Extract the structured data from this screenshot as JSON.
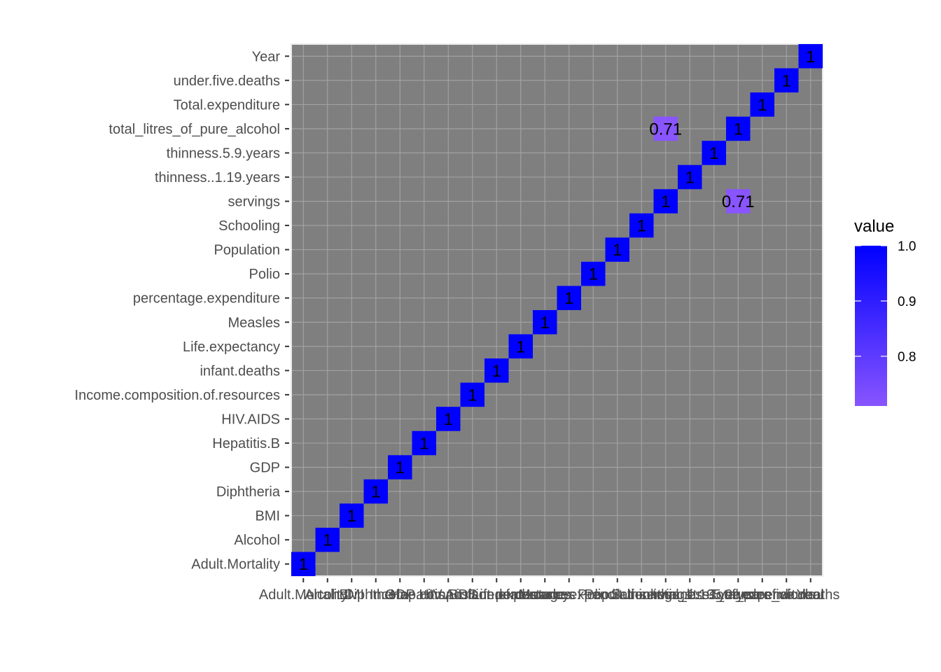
{
  "chart_data": {
    "type": "heatmap",
    "variables": [
      "Adult.Mortality",
      "Alcohol",
      "BMI",
      "Diphtheria",
      "GDP",
      "Hepatitis.B",
      "HIV.AIDS",
      "Income.composition.of.resources",
      "infant.deaths",
      "Life.expectancy",
      "Measles",
      "percentage.expenditure",
      "Polio",
      "Population",
      "Schooling",
      "servings",
      "thinness..1.19.years",
      "thinness.5.9.years",
      "total_litres_of_pure_alcohol",
      "Total.expenditure",
      "under.five.deaths",
      "Year"
    ],
    "x_labels": [
      "Adult.Mortality",
      "Alcohol",
      "BMI",
      "Diphtheria",
      "GDP",
      "Hepatitis.B",
      "HIV.AIDS",
      "Income.composition.of.resources",
      "infant.deaths",
      "Life.expectancy",
      "Measles",
      "percentage.expenditure",
      "Polio",
      "Population",
      "Schooling",
      "servings",
      "thinness..1.19.years",
      "thinness.5.9.years",
      "total_litres_of_pure_alcohol",
      "Total.expenditure",
      "under.five.deaths",
      "Year"
    ],
    "y_labels": [
      "Adult.Mortality",
      "Alcohol",
      "BMI",
      "Diphtheria",
      "GDP",
      "Hepatitis.B",
      "HIV.AIDS",
      "Income.composition.of.resources",
      "infant.deaths",
      "Life.expectancy",
      "Measles",
      "percentage.expenditure",
      "Polio",
      "Population",
      "Schooling",
      "servings",
      "thinness..1.19.years",
      "thinness.5.9.years",
      "total_litres_of_pure_alcohol",
      "Total.expenditure",
      "under.five.deaths",
      "Year"
    ],
    "cells": [
      {
        "x": "Adult.Mortality",
        "y": "Adult.Mortality",
        "value": 1,
        "label": "1"
      },
      {
        "x": "Alcohol",
        "y": "Alcohol",
        "value": 1,
        "label": "1"
      },
      {
        "x": "BMI",
        "y": "BMI",
        "value": 1,
        "label": "1"
      },
      {
        "x": "Diphtheria",
        "y": "Diphtheria",
        "value": 1,
        "label": "1"
      },
      {
        "x": "GDP",
        "y": "GDP",
        "value": 1,
        "label": "1"
      },
      {
        "x": "Hepatitis.B",
        "y": "Hepatitis.B",
        "value": 1,
        "label": "1"
      },
      {
        "x": "HIV.AIDS",
        "y": "HIV.AIDS",
        "value": 1,
        "label": "1"
      },
      {
        "x": "Income.composition.of.resources",
        "y": "Income.composition.of.resources",
        "value": 1,
        "label": "1"
      },
      {
        "x": "infant.deaths",
        "y": "infant.deaths",
        "value": 1,
        "label": "1"
      },
      {
        "x": "Life.expectancy",
        "y": "Life.expectancy",
        "value": 1,
        "label": "1"
      },
      {
        "x": "Measles",
        "y": "Measles",
        "value": 1,
        "label": "1"
      },
      {
        "x": "percentage.expenditure",
        "y": "percentage.expenditure",
        "value": 1,
        "label": "1"
      },
      {
        "x": "Polio",
        "y": "Polio",
        "value": 1,
        "label": "1"
      },
      {
        "x": "Population",
        "y": "Population",
        "value": 1,
        "label": "1"
      },
      {
        "x": "Schooling",
        "y": "Schooling",
        "value": 1,
        "label": "1"
      },
      {
        "x": "servings",
        "y": "servings",
        "value": 1,
        "label": "1"
      },
      {
        "x": "thinness..1.19.years",
        "y": "thinness..1.19.years",
        "value": 1,
        "label": "1"
      },
      {
        "x": "thinness.5.9.years",
        "y": "thinness.5.9.years",
        "value": 1,
        "label": "1"
      },
      {
        "x": "total_litres_of_pure_alcohol",
        "y": "total_litres_of_pure_alcohol",
        "value": 1,
        "label": "1"
      },
      {
        "x": "Total.expenditure",
        "y": "Total.expenditure",
        "value": 1,
        "label": "1"
      },
      {
        "x": "under.five.deaths",
        "y": "under.five.deaths",
        "value": 1,
        "label": "1"
      },
      {
        "x": "Year",
        "y": "Year",
        "value": 1,
        "label": "1"
      },
      {
        "x": "total_litres_of_pure_alcohol",
        "y": "servings",
        "value": 0.71,
        "label": "0.71"
      },
      {
        "x": "servings",
        "y": "total_litres_of_pure_alcohol",
        "value": 0.71,
        "label": "0.71"
      }
    ],
    "missing_color": "#7f7f7f",
    "color_scale": {
      "low": "#8855ff",
      "high": "#0000ff",
      "domain": [
        0.71,
        1.0
      ]
    },
    "grid": true,
    "legend": {
      "title": "value",
      "position": "right",
      "ticks": [
        {
          "value": 1.0,
          "label": "1.0"
        },
        {
          "value": 0.9,
          "label": "0.9"
        },
        {
          "value": 0.8,
          "label": "0.8"
        }
      ]
    }
  }
}
